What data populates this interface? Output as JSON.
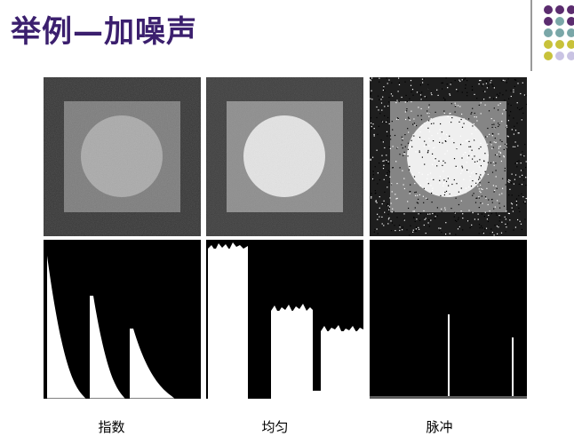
{
  "slide": {
    "title": "举例—加噪声"
  },
  "decor": {
    "dots": [
      {
        "name": "purple",
        "color": "#5b2c6f"
      },
      {
        "name": "teal",
        "color": "#7aa7a8"
      },
      {
        "name": "olive",
        "color": "#c8c23a"
      },
      {
        "name": "lavender",
        "color": "#c9c3e3"
      }
    ]
  },
  "captions": {
    "exponential": "指数",
    "uniform": "均匀",
    "impulse": "脉冲"
  }
}
